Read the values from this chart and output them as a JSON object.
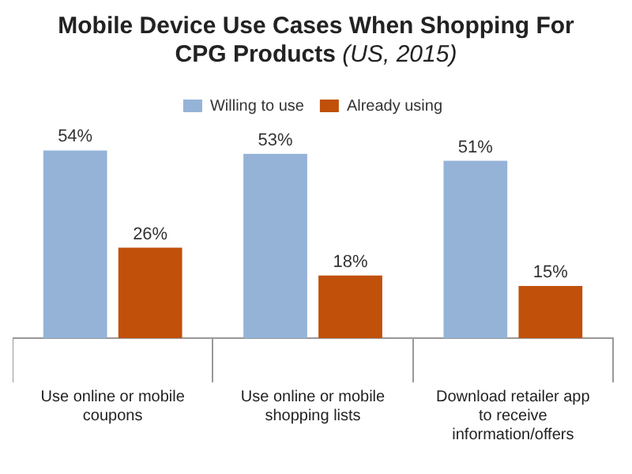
{
  "chart_data": {
    "type": "bar",
    "title": "Mobile Device Use Cases When Shopping For CPG Products",
    "subtitle": "(US, 2015)",
    "categories": [
      "Use online or mobile coupons",
      "Use online or mobile shopping lists",
      "Download retailer app to receive information/offers"
    ],
    "series": [
      {
        "name": "Willing to use",
        "color": "#95b3d7",
        "values": [
          54,
          53,
          51
        ],
        "value_labels": [
          "54%",
          "53%",
          "51%"
        ]
      },
      {
        "name": "Already using",
        "color": "#c0500a",
        "values": [
          26,
          18,
          15
        ],
        "value_labels": [
          "26%",
          "18%",
          "15%"
        ]
      }
    ],
    "legend": "top"
  }
}
